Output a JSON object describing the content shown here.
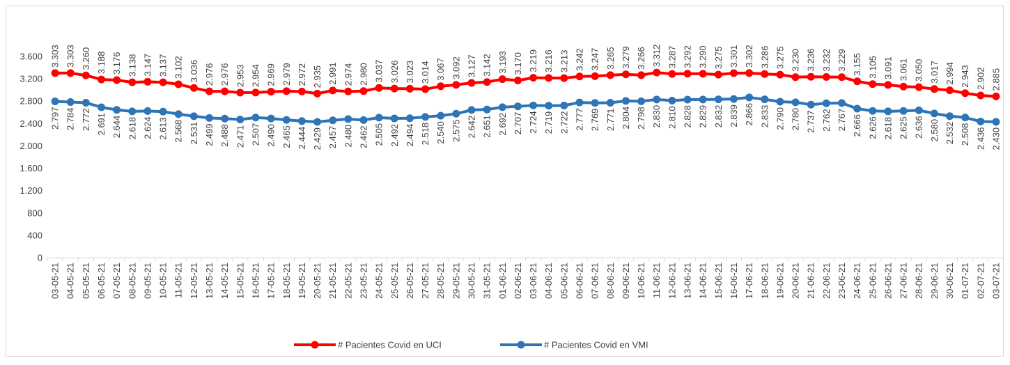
{
  "chart_data": {
    "type": "line",
    "categories": [
      "03-05-21",
      "04-05-21",
      "05-05-21",
      "06-05-21",
      "07-05-21",
      "08-05-21",
      "09-05-21",
      "10-05-21",
      "11-05-21",
      "12-05-21",
      "13-05-21",
      "14-05-21",
      "15-05-21",
      "16-05-21",
      "17-05-21",
      "18-05-21",
      "19-05-21",
      "20-05-21",
      "21-05-21",
      "22-05-21",
      "23-05-21",
      "24-05-21",
      "25-05-21",
      "26-05-21",
      "27-05-21",
      "28-05-21",
      "29-05-21",
      "30-05-21",
      "31-05-21",
      "01-06-21",
      "02-06-21",
      "03-06-21",
      "04-06-21",
      "05-06-21",
      "06-06-21",
      "07-06-21",
      "08-06-21",
      "09-06-21",
      "10-06-21",
      "11-06-21",
      "12-06-21",
      "13-06-21",
      "14-06-21",
      "15-06-21",
      "16-06-21",
      "17-06-21",
      "18-06-21",
      "19-06-21",
      "20-06-21",
      "21-06-21",
      "22-06-21",
      "23-06-21",
      "24-06-21",
      "25-06-21",
      "26-06-21",
      "27-06-21",
      "28-06-21",
      "29-06-21",
      "30-06-21",
      "01-07-21",
      "02-07-21",
      "03-07-21"
    ],
    "series": [
      {
        "name": "# Pacientes Covid en UCI",
        "color": "#ff0000",
        "label_side": "above",
        "values": [
          3303,
          3303,
          3260,
          3188,
          3176,
          3138,
          3147,
          3137,
          3102,
          3036,
          2976,
          2976,
          2953,
          2954,
          2969,
          2979,
          2972,
          2935,
          2991,
          2974,
          2980,
          3037,
          3026,
          3023,
          3014,
          3067,
          3092,
          3127,
          3142,
          3193,
          3170,
          3219,
          3216,
          3213,
          3242,
          3247,
          3265,
          3279,
          3266,
          3312,
          3287,
          3292,
          3290,
          3275,
          3301,
          3302,
          3286,
          3275,
          3230,
          3236,
          3232,
          3229,
          3155,
          3105,
          3091,
          3061,
          3050,
          3017,
          2994,
          2943,
          2902,
          2885
        ],
        "value_labels": [
          "3.303",
          "3.303",
          "3.260",
          "3.188",
          "3.176",
          "3.138",
          "3.147",
          "3.137",
          "3.102",
          "3.036",
          "2.976",
          "2.976",
          "2.953",
          "2.954",
          "2.969",
          "2.979",
          "2.972",
          "2.935",
          "2.991",
          "2.974",
          "2.980",
          "3.037",
          "3.026",
          "3.023",
          "3.014",
          "3.067",
          "3.092",
          "3.127",
          "3.142",
          "3.193",
          "3.170",
          "3.219",
          "3.216",
          "3.213",
          "3.242",
          "3.247",
          "3.265",
          "3.279",
          "3.266",
          "3.312",
          "3.287",
          "3.292",
          "3.290",
          "3.275",
          "3.301",
          "3.302",
          "3.286",
          "3.275",
          "3.230",
          "3.236",
          "3.232",
          "3.229",
          "3.155",
          "3.105",
          "3.091",
          "3.061",
          "3.050",
          "3.017",
          "2.994",
          "2.943",
          "2.902",
          "2.885"
        ]
      },
      {
        "name": "# Pacientes Covid en VMI",
        "color": "#2e75b6",
        "label_side": "below",
        "values": [
          2797,
          2784,
          2772,
          2691,
          2644,
          2618,
          2624,
          2613,
          2568,
          2531,
          2499,
          2488,
          2471,
          2507,
          2490,
          2465,
          2444,
          2429,
          2457,
          2480,
          2462,
          2505,
          2492,
          2494,
          2518,
          2540,
          2575,
          2642,
          2651,
          2692,
          2707,
          2724,
          2719,
          2722,
          2777,
          2769,
          2771,
          2804,
          2798,
          2830,
          2810,
          2828,
          2829,
          2832,
          2839,
          2866,
          2833,
          2790,
          2780,
          2737,
          2762,
          2767,
          2666,
          2626,
          2618,
          2625,
          2636,
          2580,
          2532,
          2508,
          2436,
          2430
        ],
        "value_labels": [
          "2.797",
          "2.784",
          "2.772",
          "2.691",
          "2.644",
          "2.618",
          "2.624",
          "2.613",
          "2.568",
          "2.531",
          "2.499",
          "2.488",
          "2.471",
          "2.507",
          "2.490",
          "2.465",
          "2.444",
          "2.429",
          "2.457",
          "2.480",
          "2.462",
          "2.505",
          "2.492",
          "2.494",
          "2.518",
          "2.540",
          "2.575",
          "2.642",
          "2.651",
          "2.692",
          "2.707",
          "2.724",
          "2.719",
          "2.722",
          "2.777",
          "2.769",
          "2.771",
          "2.804",
          "2.798",
          "2.830",
          "2.810",
          "2.828",
          "2.829",
          "2.832",
          "2.839",
          "2.866",
          "2.833",
          "2.790",
          "2.780",
          "2.737",
          "2.762",
          "2.767",
          "2.666",
          "2.626",
          "2.618",
          "2.625",
          "2.636",
          "2.580",
          "2.532",
          "2.508",
          "2.436",
          "2.430"
        ]
      }
    ],
    "ylim": [
      0,
      3600
    ],
    "yticks": [
      0,
      400,
      800,
      {
        "value": 1200,
        "label": "1.200"
      },
      {
        "value": 1600,
        "label": "1.600"
      },
      {
        "value": 2000,
        "label": "2.000"
      },
      {
        "value": 2400,
        "label": "2.400"
      },
      {
        "value": 2800,
        "label": "2.800"
      },
      {
        "value": 3200,
        "label": "3.200"
      },
      {
        "value": 3600,
        "label": "3.600"
      }
    ],
    "grid": false,
    "legend": "bottom"
  }
}
